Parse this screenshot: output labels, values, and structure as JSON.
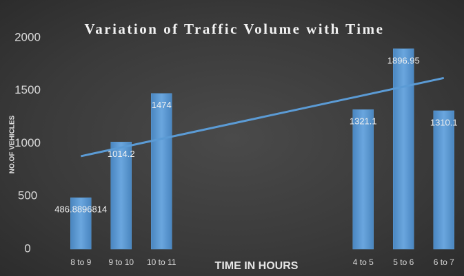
{
  "chart_data": {
    "type": "bar",
    "title": "Variation of Traffic Volume with Time",
    "x_label": "TIME IN HOURS",
    "y_label": "NO.OF VEHICLES",
    "categories": [
      "8 to 9",
      "9 to 10",
      "10 to 11",
      null,
      null,
      null,
      null,
      "4 to 5",
      "5 to 6",
      "6 to 7"
    ],
    "values": [
      486.8896814,
      1014.2,
      1474,
      null,
      null,
      null,
      null,
      1321.1,
      1896.95,
      1310.1
    ],
    "color": "#5b9bd5",
    "trendline": {
      "values": [
        880,
        1620
      ],
      "color": "#5b9bd5"
    },
    "ylim": [
      0,
      2000
    ],
    "yticks": [
      0,
      500,
      1000,
      1500,
      2000
    ],
    "grid": false
  }
}
